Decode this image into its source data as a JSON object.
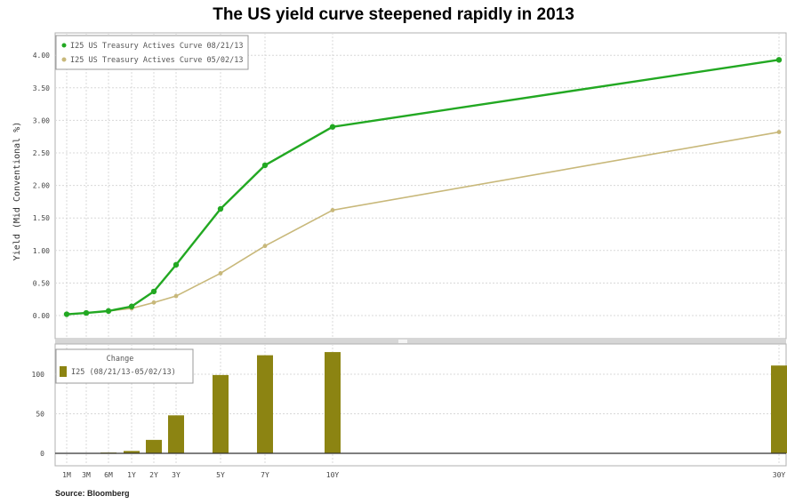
{
  "title": "The US yield curve steepened rapidly in 2013",
  "source": "Source: Bloomberg",
  "chart_data": [
    {
      "type": "line",
      "ylabel": "Yield (Mid Conventional %)",
      "x": [
        "1M",
        "3M",
        "6M",
        "1Y",
        "2Y",
        "3Y",
        "5Y",
        "7Y",
        "10Y",
        "30Y"
      ],
      "x_years": [
        0.0833,
        0.25,
        0.5,
        1,
        2,
        3,
        5,
        7,
        10,
        30
      ],
      "ylim": [
        -0.2,
        4.15
      ],
      "yticks": [
        "4.00",
        "3.50",
        "3.00",
        "2.50",
        "2.00",
        "1.50",
        "1.00",
        "0.50",
        "0.00"
      ],
      "grid": true,
      "legend_position": "top-left",
      "series": [
        {
          "name": "I25 US Treasury Actives Curve 08/21/13",
          "color": "#22a822",
          "values": [
            0.02,
            0.04,
            0.07,
            0.14,
            0.37,
            0.78,
            1.64,
            2.31,
            2.9,
            3.93
          ]
        },
        {
          "name": "I25 US Treasury Actives Curve 05/02/13",
          "color": "#c8b87a",
          "values": [
            0.02,
            0.04,
            0.07,
            0.11,
            0.2,
            0.3,
            0.65,
            1.07,
            1.62,
            2.82
          ]
        }
      ]
    },
    {
      "type": "bar",
      "legend_title": "Change",
      "legend_position": "top-left",
      "categories": [
        "1M",
        "3M",
        "6M",
        "1Y",
        "2Y",
        "3Y",
        "5Y",
        "7Y",
        "10Y",
        "30Y"
      ],
      "yticks": [
        "100",
        "50",
        "0"
      ],
      "ylim": [
        -3,
        140
      ],
      "grid": true,
      "series": [
        {
          "name": "I25 (08/21/13-05/02/13)",
          "color": "#8c8412",
          "values": [
            0,
            0,
            1,
            3,
            17,
            48,
            99,
            124,
            128,
            111
          ]
        }
      ]
    }
  ]
}
